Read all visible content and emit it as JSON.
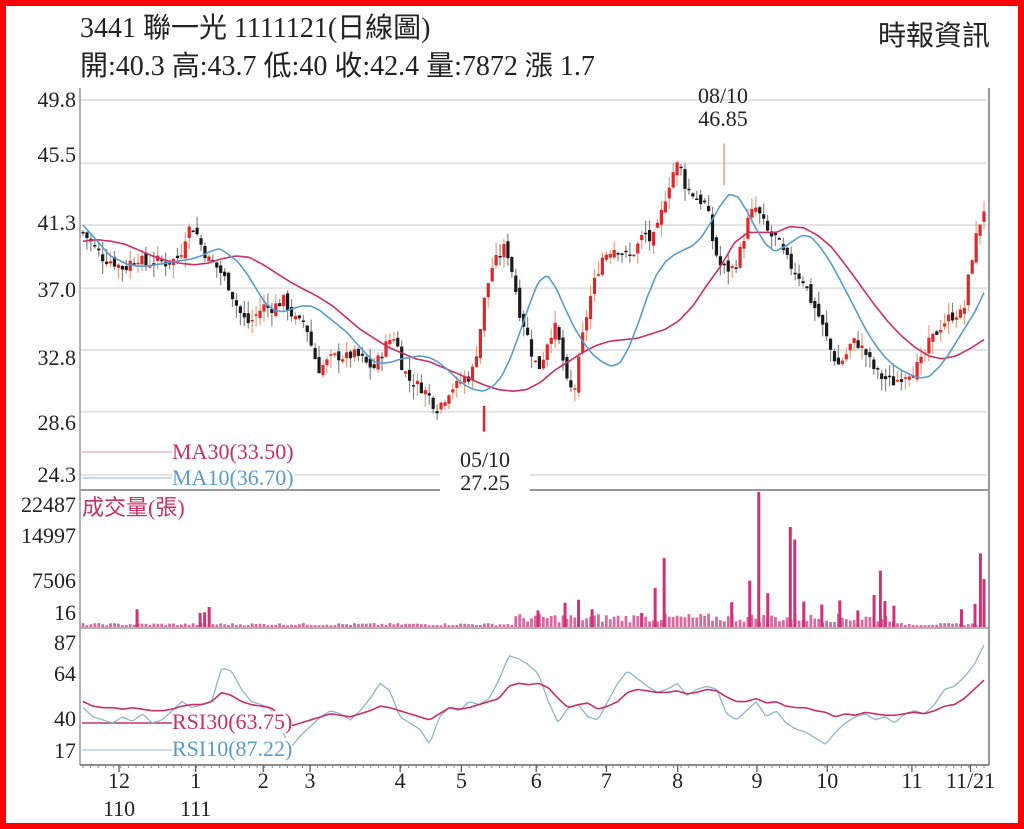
{
  "header": {
    "code": "3441",
    "name": "聯一光",
    "date": "1111121",
    "chart_type": "(日線圖)",
    "stats": [
      {
        "label": "開",
        "value": "40.3"
      },
      {
        "label": "高",
        "value": "43.7"
      },
      {
        "label": "低",
        "value": "40"
      },
      {
        "label": "收",
        "value": "42.4"
      },
      {
        "label": "量",
        "value": "7872"
      },
      {
        "label": "漲",
        "value": "1.7"
      }
    ],
    "title_line": "3441  聯一光 1111121(日線圖)",
    "stats_line": "開:40.3 高:43.7 低:40 收:42.4 量:7872 漲 1.7",
    "brand": "時報資訊"
  },
  "colors": {
    "frame": "#ff0000",
    "up": "#e0262b",
    "down": "#1a1a1a",
    "ma30": "#c8306a",
    "ma10": "#5b9ccc",
    "volume": "#d0307a",
    "rsi30": "#c8306a",
    "rsi10": "#8fb4cc",
    "grid": "#e4e4e4",
    "axis": "#999999"
  },
  "chart_data": [
    {
      "type": "candlestick",
      "title": "3441 聯一光 1111121(日線圖)",
      "ylabel": "Price",
      "ylim": [
        24.3,
        49.8
      ],
      "yticks": [
        "49.8",
        "45.5",
        "41.3",
        "37.0",
        "32.8",
        "28.6",
        "24.3"
      ],
      "annotations": [
        {
          "label": "08/10",
          "value": "46.85",
          "kind": "high"
        },
        {
          "label": "05/10",
          "value": "27.25",
          "kind": "low"
        }
      ],
      "legend": [
        {
          "name": "MA30",
          "value": "MA30(33.50)"
        },
        {
          "name": "MA10",
          "value": "MA10(36.70)"
        }
      ],
      "close_path": [
        40.8,
        40.2,
        39.6,
        39.0,
        38.9,
        38.6,
        38.3,
        38.9,
        39.1,
        38.6,
        38.8,
        38.9,
        38.7,
        38.9,
        39.2,
        41.0,
        41.2,
        40.0,
        39.0,
        38.6,
        38.0,
        37.2,
        36.0,
        35.0,
        34.6,
        35.2,
        35.8,
        35.6,
        35.9,
        36.2,
        35.3,
        34.6,
        34.8,
        33.0,
        31.5,
        31.9,
        32.3,
        32.4,
        32.3,
        32.5,
        32.3,
        31.8,
        31.6,
        32.5,
        33.4,
        33.8,
        31.8,
        30.8,
        30.5,
        30.2,
        29.6,
        28.8,
        29.4,
        30.2,
        30.4,
        30.9,
        31.0,
        33.2,
        36.5,
        38.4,
        39.2,
        39.9,
        38.0,
        35.4,
        34.0,
        32.1,
        31.6,
        33.4,
        34.5,
        32.8,
        30.0,
        30.3,
        33.5,
        36.0,
        37.8,
        39.2,
        39.6,
        39.8,
        39.3,
        39.1,
        39.9,
        40.8,
        40.1,
        41.2,
        43.2,
        44.8,
        45.6,
        43.8,
        43.4,
        43.0,
        42.6,
        39.8,
        38.5,
        38.3,
        38.4,
        39.8,
        41.7,
        42.5,
        41.6,
        40.6,
        40.4,
        39.4,
        38.6,
        38.0,
        37.5,
        36.2,
        35.3,
        34.0,
        32.6,
        31.8,
        32.4,
        33.4,
        33.2,
        32.5,
        31.6,
        31.0,
        30.8,
        30.6,
        31.0,
        31.3,
        31.5,
        32.0,
        33.2,
        33.9,
        34.6,
        35.0,
        35.3,
        35.2,
        38.5,
        40.8,
        42.4
      ],
      "ma10_path": [
        41.3,
        40.6,
        39.9,
        39.2,
        38.9,
        38.6,
        38.5,
        38.5,
        38.6,
        38.7,
        38.8,
        38.9,
        39.0,
        39.2,
        39.5,
        39.7,
        39.3,
        38.8,
        38.0,
        37.0,
        36.0,
        35.5,
        35.4,
        35.6,
        35.8,
        35.8,
        35.5,
        35.0,
        34.5,
        34.0,
        33.3,
        32.6,
        32.0,
        31.9,
        32.0,
        32.2,
        32.3,
        32.4,
        32.3,
        32.0,
        31.5,
        30.9,
        30.4,
        30.1,
        30.0,
        30.3,
        31.0,
        32.3,
        34.0,
        35.8,
        37.4,
        37.9,
        37.0,
        35.6,
        34.3,
        33.3,
        32.5,
        32.0,
        31.7,
        31.9,
        33.0,
        34.6,
        36.4,
        37.9,
        38.8,
        39.3,
        39.6,
        39.9,
        40.5,
        41.5,
        42.6,
        43.4,
        43.2,
        42.2,
        41.0,
        40.0,
        39.5,
        39.8,
        40.2,
        40.6,
        40.5,
        39.8,
        38.9,
        37.8,
        36.6,
        35.4,
        34.2,
        33.2,
        32.4,
        31.8,
        31.4,
        31.1,
        30.9,
        31.0,
        31.6,
        32.4,
        33.4,
        34.4,
        35.4,
        36.7
      ],
      "ma30_path": [
        40.2,
        40.3,
        40.2,
        40.0,
        39.6,
        39.2,
        38.9,
        38.7,
        38.6,
        38.7,
        39.0,
        39.2,
        39.1,
        38.6,
        38.0,
        37.4,
        36.9,
        36.4,
        35.8,
        35.0,
        34.2,
        33.6,
        33.0,
        32.6,
        32.2,
        32.0,
        31.6,
        31.2,
        30.8,
        30.4,
        30.1,
        30.0,
        30.1,
        30.6,
        31.4,
        32.0,
        32.6,
        33.1,
        33.4,
        33.5,
        33.6,
        33.9,
        34.2,
        34.8,
        35.8,
        37.2,
        38.5,
        40.1,
        40.8,
        40.8,
        40.8,
        41.2,
        41.1,
        40.6,
        39.8,
        38.6,
        37.3,
        36.0,
        34.8,
        33.8,
        33.0,
        32.4,
        32.2,
        32.4,
        32.9,
        33.5
      ],
      "candle_count": 230
    },
    {
      "type": "bar",
      "title": "成交量(張)",
      "yticks": [
        "22487",
        "14997",
        "7506",
        "16"
      ],
      "ylim": [
        16,
        22487
      ],
      "spikes": [
        {
          "pos": 0.06,
          "value": 2800
        },
        {
          "pos": 0.13,
          "value": 2200
        },
        {
          "pos": 0.135,
          "value": 2300
        },
        {
          "pos": 0.14,
          "value": 3200
        },
        {
          "pos": 0.505,
          "value": 2600
        },
        {
          "pos": 0.535,
          "value": 3900
        },
        {
          "pos": 0.55,
          "value": 4400
        },
        {
          "pos": 0.565,
          "value": 2800
        },
        {
          "pos": 0.62,
          "value": 2200
        },
        {
          "pos": 0.635,
          "value": 6400
        },
        {
          "pos": 0.645,
          "value": 11400
        },
        {
          "pos": 0.72,
          "value": 4000
        },
        {
          "pos": 0.74,
          "value": 7600
        },
        {
          "pos": 0.75,
          "value": 22487
        },
        {
          "pos": 0.76,
          "value": 5500
        },
        {
          "pos": 0.785,
          "value": 16600
        },
        {
          "pos": 0.79,
          "value": 14500
        },
        {
          "pos": 0.8,
          "value": 4100
        },
        {
          "pos": 0.82,
          "value": 3600
        },
        {
          "pos": 0.84,
          "value": 4300
        },
        {
          "pos": 0.86,
          "value": 2600
        },
        {
          "pos": 0.878,
          "value": 5200
        },
        {
          "pos": 0.885,
          "value": 9300
        },
        {
          "pos": 0.89,
          "value": 4200
        },
        {
          "pos": 0.9,
          "value": 3400
        },
        {
          "pos": 0.975,
          "value": 2800
        },
        {
          "pos": 0.99,
          "value": 3700
        },
        {
          "pos": 0.996,
          "value": 12200
        },
        {
          "pos": 1.0,
          "value": 7872
        }
      ]
    },
    {
      "type": "line",
      "title": "RSI",
      "yticks": [
        "87",
        "64",
        "40",
        "17"
      ],
      "ylim": [
        10,
        90
      ],
      "legend": [
        {
          "name": "RSI30",
          "value": "RSI30(63.75)"
        },
        {
          "name": "RSI10",
          "value": "RSI10(87.22)"
        }
      ],
      "rsi30_path": [
        50,
        47,
        46,
        46,
        45,
        46,
        45,
        44,
        44,
        45,
        47,
        48,
        48,
        50,
        56,
        54,
        50,
        48,
        47,
        46,
        40,
        34,
        36,
        38,
        40,
        42,
        41,
        40,
        42,
        44,
        47,
        46,
        44,
        42,
        40,
        38,
        42,
        46,
        45,
        46,
        48,
        50,
        52,
        60,
        62,
        61,
        62,
        59,
        52,
        46,
        48,
        49,
        45,
        47,
        50,
        56,
        58,
        57,
        56,
        56,
        57,
        55,
        56,
        58,
        57,
        53,
        50,
        50,
        52,
        49,
        50,
        47,
        46,
        46,
        44,
        43,
        40,
        42,
        41,
        43,
        42,
        41,
        41,
        42,
        43,
        42,
        44,
        47,
        48,
        52,
        58,
        64
      ],
      "rsi10_path": [
        46,
        40,
        38,
        36,
        40,
        37,
        42,
        36,
        38,
        44,
        50,
        46,
        48,
        50,
        72,
        70,
        58,
        50,
        48,
        45,
        32,
        20,
        28,
        34,
        40,
        44,
        42,
        38,
        44,
        52,
        62,
        57,
        40,
        36,
        32,
        22,
        40,
        46,
        44,
        50,
        48,
        52,
        64,
        80,
        78,
        74,
        68,
        50,
        36,
        46,
        48,
        40,
        38,
        50,
        62,
        70,
        65,
        60,
        56,
        58,
        62,
        54,
        58,
        60,
        58,
        42,
        38,
        44,
        50,
        40,
        44,
        36,
        32,
        30,
        26,
        22,
        30,
        36,
        40,
        42,
        38,
        40,
        36,
        42,
        44,
        42,
        48,
        58,
        60,
        66,
        74,
        87
      ]
    }
  ],
  "xaxis": {
    "months": [
      {
        "label": "12",
        "sub": "110",
        "pos": 0.04
      },
      {
        "label": "1",
        "sub": "111",
        "pos": 0.125
      },
      {
        "label": "2",
        "sub": "",
        "pos": 0.2
      },
      {
        "label": "3",
        "sub": "",
        "pos": 0.252
      },
      {
        "label": "4",
        "sub": "",
        "pos": 0.352
      },
      {
        "label": "5",
        "sub": "",
        "pos": 0.42
      },
      {
        "label": "6",
        "sub": "",
        "pos": 0.503
      },
      {
        "label": "7",
        "sub": "",
        "pos": 0.581
      },
      {
        "label": "8",
        "sub": "",
        "pos": 0.66
      },
      {
        "label": "9",
        "sub": "",
        "pos": 0.748
      },
      {
        "label": "10",
        "sub": "",
        "pos": 0.826
      },
      {
        "label": "11",
        "sub": "",
        "pos": 0.92
      },
      {
        "label": "11/21",
        "sub": "",
        "pos": 0.985
      }
    ]
  }
}
